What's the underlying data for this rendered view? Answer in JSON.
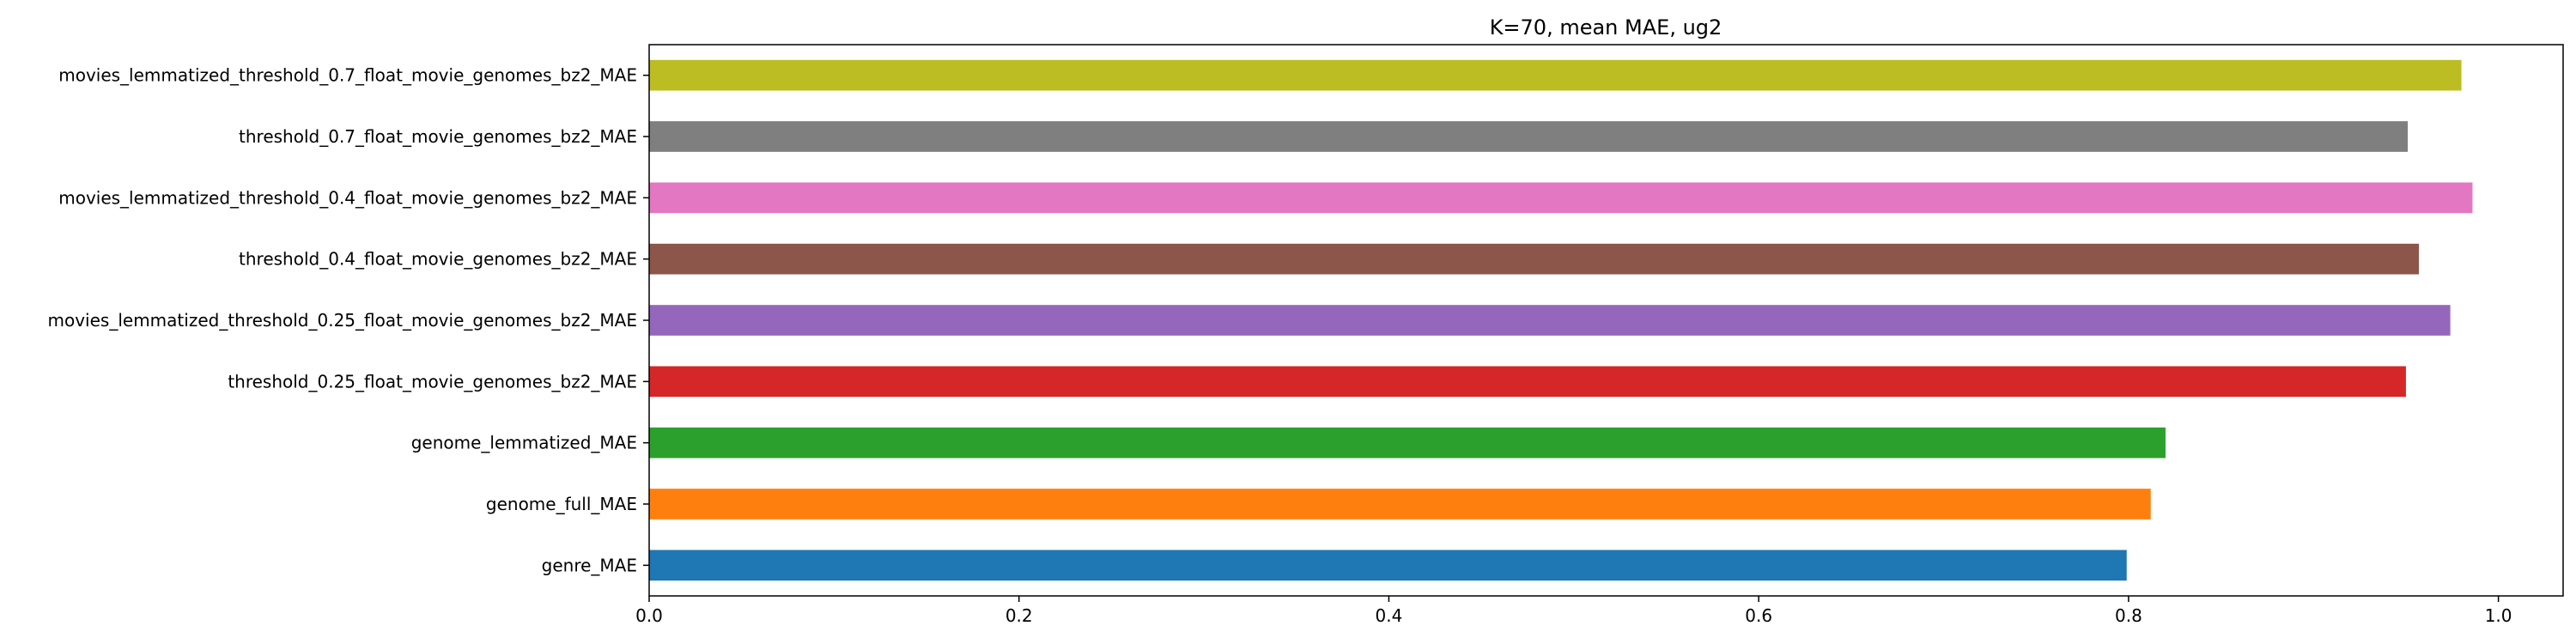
{
  "chart_data": {
    "type": "bar",
    "orientation": "horizontal",
    "title": "K=70, mean MAE, ug2",
    "xlabel": "",
    "ylabel": "",
    "xlim": [
      0.0,
      1.035
    ],
    "xticks": [
      0.0,
      0.2,
      0.4,
      0.6,
      0.8,
      1.0
    ],
    "xtick_labels": [
      "0.0",
      "0.2",
      "0.4",
      "0.6",
      "0.8",
      "1.0"
    ],
    "grid": false,
    "legend": "none",
    "categories": [
      "genre_MAE",
      "genome_full_MAE",
      "genome_lemmatized_MAE",
      "threshold_0.25_float_movie_genomes_bz2_MAE",
      "movies_lemmatized_threshold_0.25_float_movie_genomes_bz2_MAE",
      "threshold_0.4_float_movie_genomes_bz2_MAE",
      "movies_lemmatized_threshold_0.4_float_movie_genomes_bz2_MAE",
      "threshold_0.7_float_movie_genomes_bz2_MAE",
      "movies_lemmatized_threshold_0.7_float_movie_genomes_bz2_MAE"
    ],
    "values": [
      0.799,
      0.812,
      0.82,
      0.95,
      0.974,
      0.957,
      0.986,
      0.951,
      0.98
    ],
    "colors": [
      "#1f77b4",
      "#ff7f0e",
      "#2ca02c",
      "#d62728",
      "#9467bd",
      "#8c564b",
      "#e377c2",
      "#7f7f7f",
      "#bcbd22"
    ]
  }
}
